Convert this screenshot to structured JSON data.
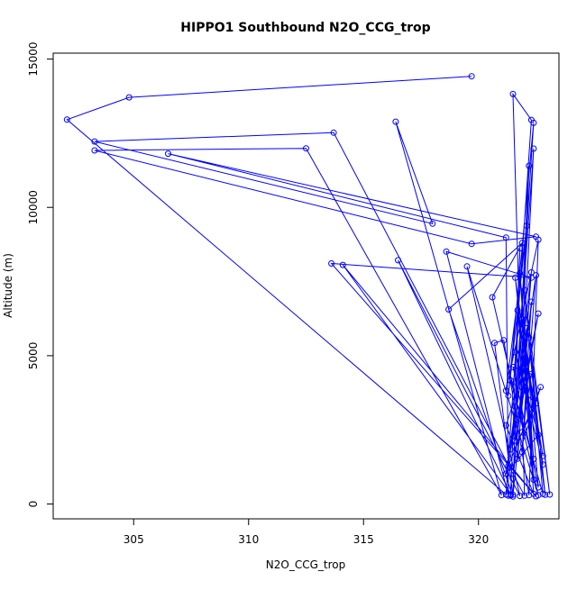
{
  "chart_data": {
    "type": "line",
    "title": "HIPPO1 Southbound N2O_CCG_trop",
    "xlabel": "N2O_CCG_trop",
    "ylabel": "Altitude (m)",
    "xlim": [
      301.5,
      323.5
    ],
    "ylim": [
      -500,
      15200
    ],
    "x_ticks": [
      305,
      310,
      315,
      320
    ],
    "x_tick_labels": [
      "305",
      "310",
      "315",
      "320"
    ],
    "y_ticks": [
      0,
      5000,
      10000,
      15000
    ],
    "y_tick_labels": [
      "0",
      "5000",
      "10000",
      "15000"
    ],
    "grid": false,
    "legend": "none",
    "series": [
      {
        "color": "#0000ff",
        "marker": "open-circle",
        "points": [
          {
            "x": 319.7,
            "y": 14420
          },
          {
            "x": 304.8,
            "y": 13710
          },
          {
            "x": 302.1,
            "y": 12960
          },
          {
            "x": 321.2,
            "y": 320
          },
          {
            "x": 322.3,
            "y": 12950
          },
          {
            "x": 321.5,
            "y": 13820
          },
          {
            "x": 322.0,
            "y": 280
          },
          {
            "x": 313.7,
            "y": 12520
          },
          {
            "x": 303.3,
            "y": 12220
          },
          {
            "x": 318.0,
            "y": 9450
          },
          {
            "x": 316.4,
            "y": 12890
          },
          {
            "x": 321.0,
            "y": 300
          },
          {
            "x": 312.5,
            "y": 11990
          },
          {
            "x": 303.3,
            "y": 11920
          },
          {
            "x": 319.7,
            "y": 8770
          },
          {
            "x": 322.5,
            "y": 9010
          },
          {
            "x": 306.5,
            "y": 11810
          },
          {
            "x": 321.2,
            "y": 8980
          },
          {
            "x": 321.3,
            "y": 280
          },
          {
            "x": 318.6,
            "y": 8510
          },
          {
            "x": 322.3,
            "y": 7630
          },
          {
            "x": 313.6,
            "y": 8110
          },
          {
            "x": 322.5,
            "y": 260
          },
          {
            "x": 314.1,
            "y": 8060
          },
          {
            "x": 321.4,
            "y": 320
          },
          {
            "x": 316.5,
            "y": 8220
          },
          {
            "x": 321.8,
            "y": 270
          },
          {
            "x": 319.5,
            "y": 8010
          },
          {
            "x": 322.6,
            "y": 300
          },
          {
            "x": 320.6,
            "y": 6970
          },
          {
            "x": 321.9,
            "y": 8800
          },
          {
            "x": 318.7,
            "y": 6560
          },
          {
            "x": 321.5,
            "y": 250
          },
          {
            "x": 320.7,
            "y": 5430
          },
          {
            "x": 321.1,
            "y": 5520
          },
          {
            "x": 322.2,
            "y": 300
          },
          {
            "x": 322.6,
            "y": 8910
          },
          {
            "x": 321.2,
            "y": 3820
          },
          {
            "x": 322.1,
            "y": 9380
          },
          {
            "x": 321.3,
            "y": 3650
          },
          {
            "x": 322.4,
            "y": 12850
          },
          {
            "x": 321.6,
            "y": 3280
          },
          {
            "x": 322.4,
            "y": 11980
          },
          {
            "x": 321.8,
            "y": 2880
          },
          {
            "x": 322.2,
            "y": 11400
          },
          {
            "x": 321.6,
            "y": 2140
          },
          {
            "x": 322.6,
            "y": 6420
          },
          {
            "x": 321.4,
            "y": 1840
          },
          {
            "x": 322.3,
            "y": 7810
          },
          {
            "x": 321.7,
            "y": 1530
          },
          {
            "x": 322.7,
            "y": 3940
          },
          {
            "x": 321.3,
            "y": 1290
          },
          {
            "x": 322.5,
            "y": 7710
          },
          {
            "x": 321.9,
            "y": 1750
          },
          {
            "x": 322.3,
            "y": 6820
          },
          {
            "x": 321.5,
            "y": 860
          },
          {
            "x": 322.1,
            "y": 5930
          },
          {
            "x": 321.2,
            "y": 1020
          },
          {
            "x": 322.6,
            "y": 2330
          },
          {
            "x": 321.6,
            "y": 5120
          },
          {
            "x": 322.8,
            "y": 1330
          },
          {
            "x": 321.9,
            "y": 5890
          },
          {
            "x": 322.8,
            "y": 1620
          },
          {
            "x": 321.7,
            "y": 6530
          },
          {
            "x": 322.4,
            "y": 820
          },
          {
            "x": 321.8,
            "y": 7780
          },
          {
            "x": 322.6,
            "y": 560
          },
          {
            "x": 321.5,
            "y": 4620
          },
          {
            "x": 322.3,
            "y": 4380
          },
          {
            "x": 321.9,
            "y": 2420
          },
          {
            "x": 322.5,
            "y": 3390
          },
          {
            "x": 321.4,
            "y": 4160
          },
          {
            "x": 322.8,
            "y": 340
          },
          {
            "x": 322.0,
            "y": 7210
          },
          {
            "x": 323.1,
            "y": 320
          },
          {
            "x": 322.2,
            "y": 5610
          },
          {
            "x": 322.9,
            "y": 310
          },
          {
            "x": 321.6,
            "y": 7630
          },
          {
            "x": 322.4,
            "y": 1520
          },
          {
            "x": 321.9,
            "y": 6240
          },
          {
            "x": 322.4,
            "y": 340
          },
          {
            "x": 321.2,
            "y": 2650
          },
          {
            "x": 322.1,
            "y": 4840
          },
          {
            "x": 321.5,
            "y": 310
          },
          {
            "x": 321.8,
            "y": 8620
          },
          {
            "x": 321.4,
            "y": 290
          }
        ]
      }
    ]
  }
}
